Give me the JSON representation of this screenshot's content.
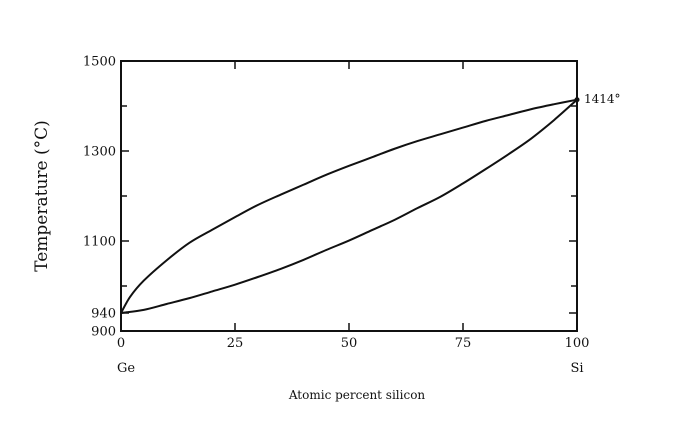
{
  "chart_data": {
    "type": "line",
    "title": "",
    "xlabel": "Atomic percent silicon",
    "ylabel": "Temperature (°C)",
    "xlim": [
      0,
      100
    ],
    "ylim": [
      900,
      1500
    ],
    "x_ticks": [
      0,
      25,
      50,
      75,
      100
    ],
    "x_tick_labels": [
      "0",
      "25",
      "50",
      "75",
      "100"
    ],
    "y_ticks": [
      900,
      940,
      1100,
      1300,
      1500
    ],
    "y_tick_labels": [
      "900",
      "940",
      "1100",
      "1300",
      "1500"
    ],
    "y_minor_ticks": [
      1000,
      1200,
      1400
    ],
    "x_end_labels": {
      "left": "Ge",
      "right": "Si"
    },
    "annotation": {
      "text": "1414°",
      "x": 100,
      "y": 1414
    },
    "grid": false,
    "legend": "none",
    "series": [
      {
        "role": "liquidus",
        "x": [
          0,
          2,
          5,
          10,
          15,
          20,
          25,
          30,
          35,
          40,
          45,
          50,
          55,
          60,
          65,
          70,
          75,
          80,
          85,
          90,
          95,
          100
        ],
        "y": [
          940,
          976,
          1012,
          1057,
          1096,
          1125,
          1153,
          1180,
          1203,
          1225,
          1247,
          1267,
          1286,
          1305,
          1322,
          1337,
          1352,
          1367,
          1380,
          1393,
          1404,
          1414
        ]
      },
      {
        "role": "solidus",
        "x": [
          0,
          5,
          10,
          15,
          20,
          25,
          30,
          35,
          40,
          45,
          50,
          55,
          60,
          65,
          70,
          75,
          80,
          85,
          90,
          95,
          100
        ],
        "y": [
          940,
          947,
          960,
          973,
          988,
          1003,
          1020,
          1038,
          1058,
          1080,
          1101,
          1124,
          1147,
          1173,
          1198,
          1228,
          1260,
          1293,
          1328,
          1369,
          1414
        ]
      }
    ]
  }
}
